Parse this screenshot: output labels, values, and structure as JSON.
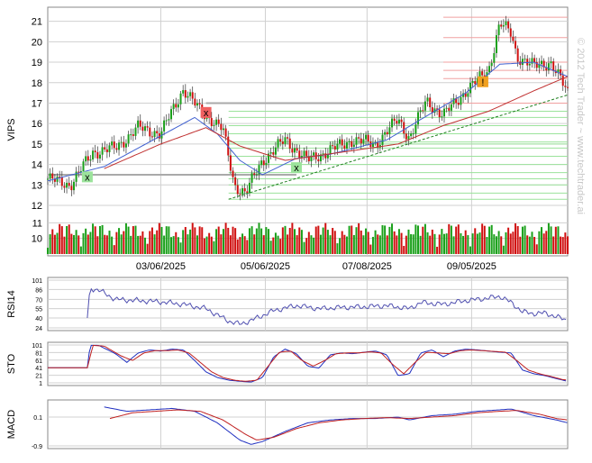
{
  "chart_data": [
    {
      "type": "candlestick",
      "ylabel": "VIPS",
      "ylim": [
        12,
        21.6
      ],
      "y_ticks": [
        "12",
        "13",
        "14",
        "15",
        "16",
        "17",
        "18",
        "19",
        "20",
        "21"
      ],
      "x_ticks": [
        "03/06/2025",
        "05/06/2025",
        "07/08/2025",
        "09/05/2025"
      ],
      "close_path": [
        [
          0,
          13.3
        ],
        [
          4,
          13.0
        ],
        [
          8,
          14.6
        ],
        [
          12,
          14.8
        ],
        [
          16,
          15.8
        ],
        [
          20,
          15.5
        ],
        [
          24,
          17.7
        ],
        [
          27,
          16.6
        ],
        [
          29,
          16.2
        ],
        [
          31,
          15.7
        ],
        [
          33,
          13.0
        ],
        [
          35,
          12.6
        ],
        [
          38,
          14.2
        ],
        [
          42,
          15.2
        ],
        [
          46,
          14.2
        ],
        [
          50,
          14.7
        ],
        [
          54,
          15.2
        ],
        [
          58,
          15.0
        ],
        [
          62,
          16.2
        ],
        [
          64,
          15.3
        ],
        [
          67,
          17.1
        ],
        [
          70,
          16.4
        ],
        [
          74,
          17.6
        ],
        [
          78,
          18.6
        ],
        [
          80,
          20.9
        ],
        [
          82,
          20.4
        ],
        [
          83,
          19.3
        ],
        [
          86,
          18.8
        ],
        [
          89,
          19.0
        ],
        [
          91,
          18.0
        ],
        [
          92,
          17.5
        ]
      ],
      "ma_blue": [
        [
          0,
          13.2
        ],
        [
          10,
          13.9
        ],
        [
          20,
          15.4
        ],
        [
          26,
          16.3
        ],
        [
          30,
          15.5
        ],
        [
          34,
          14.2
        ],
        [
          38,
          13.5
        ],
        [
          44,
          14.3
        ],
        [
          50,
          14.5
        ],
        [
          60,
          15.2
        ],
        [
          66,
          16.2
        ],
        [
          74,
          17.5
        ],
        [
          80,
          18.9
        ],
        [
          86,
          19.0
        ],
        [
          92,
          18.3
        ]
      ],
      "ma_red": [
        [
          10,
          13.8
        ],
        [
          20,
          15.0
        ],
        [
          28,
          15.8
        ],
        [
          34,
          14.9
        ],
        [
          42,
          14.2
        ],
        [
          52,
          14.6
        ],
        [
          62,
          15.0
        ],
        [
          70,
          15.9
        ],
        [
          78,
          16.6
        ],
        [
          86,
          17.6
        ],
        [
          92,
          18.3
        ]
      ],
      "trendline_from": [
        32,
        12.3
      ],
      "trendline_to": [
        92,
        17.4
      ],
      "support_levels": [
        12.3,
        12.6,
        13.0,
        13.3,
        13.6,
        14.0,
        14.4,
        14.8,
        15.0,
        15.1,
        15.5,
        15.9,
        16.3,
        16.6
      ],
      "resistance_levels": [
        17.0,
        18.2,
        18.6,
        19.0,
        20.2,
        21.2
      ],
      "markers": [
        {
          "kind": "buy",
          "symbol": "x",
          "at": [
            7,
            13.35
          ]
        },
        {
          "kind": "sell",
          "symbol": "x",
          "at": [
            28,
            16.5
          ]
        },
        {
          "kind": "buy",
          "symbol": "x",
          "at": [
            44,
            13.8
          ]
        },
        {
          "kind": "alert",
          "symbol": "!",
          "at": [
            77,
            18.0
          ]
        }
      ],
      "volume": {
        "ylim": [
          9,
          12
        ],
        "ticks": [
          "10",
          "11"
        ]
      },
      "watermark": "© 2012 Tech Trader ~ www.techtrader.ai"
    },
    {
      "type": "line",
      "ylabel": "RSI14",
      "ylim": [
        24,
        101
      ],
      "y_ticks": [
        "101",
        "86",
        "70",
        "55",
        "40",
        "24"
      ],
      "series": [
        {
          "values": [
            [
              7,
              40
            ],
            [
              7.5,
              88
            ],
            [
              9,
              85
            ],
            [
              12,
              70
            ],
            [
              16,
              68
            ],
            [
              20,
              66
            ],
            [
              24,
              62
            ],
            [
              28,
              55
            ],
            [
              30,
              45
            ],
            [
              32,
              35
            ],
            [
              34,
              30
            ],
            [
              36,
              36
            ],
            [
              40,
              52
            ],
            [
              44,
              60
            ],
            [
              48,
              55
            ],
            [
              52,
              57
            ],
            [
              56,
              58
            ],
            [
              60,
              60
            ],
            [
              64,
              55
            ],
            [
              66,
              65
            ],
            [
              70,
              62
            ],
            [
              74,
              68
            ],
            [
              78,
              72
            ],
            [
              80,
              75
            ],
            [
              82,
              65
            ],
            [
              84,
              50
            ],
            [
              86,
              47
            ],
            [
              88,
              48
            ],
            [
              90,
              42
            ],
            [
              92,
              36
            ]
          ]
        }
      ]
    },
    {
      "type": "line",
      "ylabel": "STO",
      "ylim": [
        1,
        101
      ],
      "y_ticks": [
        "101",
        "81",
        "61",
        "41",
        "21",
        "1"
      ],
      "series": [
        {
          "values": [
            [
              0,
              41
            ],
            [
              7,
              41
            ],
            [
              7.5,
              100
            ],
            [
              9,
              100
            ],
            [
              12,
              78
            ],
            [
              14,
              55
            ],
            [
              16,
              80
            ],
            [
              18,
              88
            ],
            [
              20,
              85
            ],
            [
              22,
              90
            ],
            [
              24,
              88
            ],
            [
              26,
              60
            ],
            [
              28,
              30
            ],
            [
              30,
              15
            ],
            [
              32,
              8
            ],
            [
              34,
              5
            ],
            [
              36,
              3
            ],
            [
              38,
              15
            ],
            [
              40,
              70
            ],
            [
              42,
              90
            ],
            [
              44,
              78
            ],
            [
              46,
              45
            ],
            [
              48,
              40
            ],
            [
              50,
              75
            ],
            [
              52,
              80
            ],
            [
              54,
              78
            ],
            [
              56,
              82
            ],
            [
              58,
              85
            ],
            [
              60,
              75
            ],
            [
              62,
              20
            ],
            [
              64,
              25
            ],
            [
              66,
              80
            ],
            [
              68,
              88
            ],
            [
              70,
              70
            ],
            [
              72,
              85
            ],
            [
              74,
              90
            ],
            [
              76,
              88
            ],
            [
              78,
              85
            ],
            [
              80,
              82
            ],
            [
              82,
              80
            ],
            [
              84,
              35
            ],
            [
              86,
              25
            ],
            [
              88,
              20
            ],
            [
              90,
              12
            ],
            [
              92,
              5
            ]
          ]
        },
        {
          "values": [
            [
              0,
              41
            ],
            [
              7,
              41
            ],
            [
              8,
              100
            ],
            [
              10,
              98
            ],
            [
              13,
              72
            ],
            [
              15,
              60
            ],
            [
              17,
              80
            ],
            [
              19,
              86
            ],
            [
              21,
              86
            ],
            [
              23,
              88
            ],
            [
              25,
              80
            ],
            [
              27,
              55
            ],
            [
              29,
              30
            ],
            [
              31,
              15
            ],
            [
              33,
              8
            ],
            [
              35,
              5
            ],
            [
              37,
              8
            ],
            [
              39,
              45
            ],
            [
              41,
              82
            ],
            [
              43,
              85
            ],
            [
              45,
              60
            ],
            [
              47,
              45
            ],
            [
              49,
              60
            ],
            [
              51,
              78
            ],
            [
              53,
              80
            ],
            [
              55,
              80
            ],
            [
              57,
              83
            ],
            [
              59,
              80
            ],
            [
              61,
              50
            ],
            [
              63,
              25
            ],
            [
              65,
              55
            ],
            [
              67,
              82
            ],
            [
              69,
              80
            ],
            [
              71,
              78
            ],
            [
              73,
              86
            ],
            [
              75,
              88
            ],
            [
              77,
              86
            ],
            [
              79,
              84
            ],
            [
              81,
              82
            ],
            [
              83,
              60
            ],
            [
              85,
              35
            ],
            [
              87,
              25
            ],
            [
              89,
              18
            ],
            [
              91,
              10
            ],
            [
              92,
              8
            ]
          ]
        }
      ]
    },
    {
      "type": "line",
      "ylabel": "MACD",
      "ylim": [
        -0.9,
        0.6
      ],
      "y_ticks": [
        "0.1",
        "-0.9"
      ],
      "series": [
        {
          "values": [
            [
              10,
              0.45
            ],
            [
              14,
              0.3
            ],
            [
              18,
              0.35
            ],
            [
              22,
              0.4
            ],
            [
              26,
              0.3
            ],
            [
              30,
              -0.1
            ],
            [
              34,
              -0.7
            ],
            [
              36,
              -0.85
            ],
            [
              38,
              -0.75
            ],
            [
              42,
              -0.4
            ],
            [
              46,
              -0.1
            ],
            [
              50,
              0.0
            ],
            [
              54,
              0.05
            ],
            [
              58,
              0.05
            ],
            [
              62,
              0.1
            ],
            [
              64,
              0.0
            ],
            [
              68,
              0.15
            ],
            [
              72,
              0.2
            ],
            [
              76,
              0.3
            ],
            [
              80,
              0.35
            ],
            [
              82,
              0.38
            ],
            [
              86,
              0.15
            ],
            [
              90,
              0.0
            ],
            [
              92,
              -0.1
            ]
          ]
        },
        {
          "values": [
            [
              11,
              0.05
            ],
            [
              15,
              0.25
            ],
            [
              19,
              0.3
            ],
            [
              23,
              0.35
            ],
            [
              27,
              0.3
            ],
            [
              31,
              0.0
            ],
            [
              35,
              -0.5
            ],
            [
              37,
              -0.7
            ],
            [
              40,
              -0.6
            ],
            [
              44,
              -0.3
            ],
            [
              48,
              -0.1
            ],
            [
              52,
              0.0
            ],
            [
              56,
              0.05
            ],
            [
              60,
              0.08
            ],
            [
              64,
              0.05
            ],
            [
              68,
              0.1
            ],
            [
              72,
              0.15
            ],
            [
              76,
              0.25
            ],
            [
              80,
              0.3
            ],
            [
              83,
              0.33
            ],
            [
              87,
              0.2
            ],
            [
              90,
              0.05
            ],
            [
              92,
              0.0
            ]
          ]
        }
      ]
    }
  ]
}
